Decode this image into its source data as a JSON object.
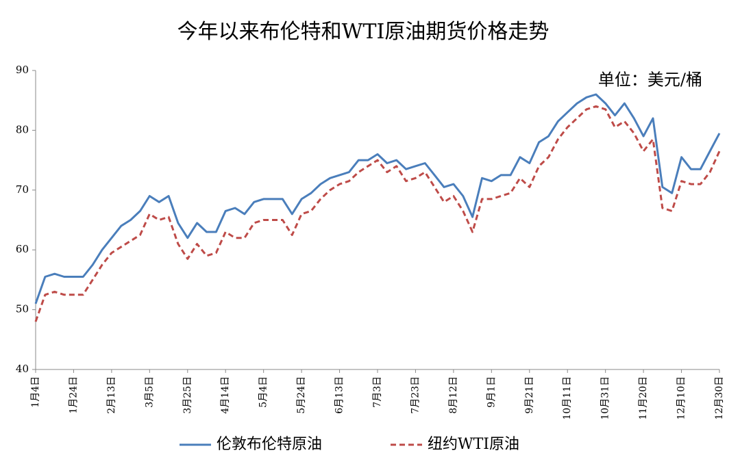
{
  "chart_data": {
    "type": "line",
    "title": "今年以来布伦特和WTI原油期货价格走势",
    "annotation": "单位：美元/桶",
    "categories": [
      "1月4日",
      null,
      null,
      null,
      "1月24日",
      null,
      null,
      null,
      "2月13日",
      null,
      null,
      null,
      "3月5日",
      null,
      null,
      null,
      "3月25日",
      null,
      null,
      null,
      "4月14日",
      null,
      null,
      null,
      "5月4日",
      null,
      null,
      null,
      "5月24日",
      null,
      null,
      null,
      "6月13日",
      null,
      null,
      null,
      "7月3日",
      null,
      null,
      null,
      "7月23日",
      null,
      null,
      null,
      "8月12日",
      null,
      null,
      null,
      "9月1日",
      null,
      null,
      null,
      "9月21日",
      null,
      null,
      null,
      "10月11日",
      null,
      null,
      null,
      "10月31日",
      null,
      null,
      null,
      "11月20日",
      null,
      null,
      null,
      "12月10日",
      null,
      null,
      null,
      "12月30日"
    ],
    "series": [
      {
        "name": "伦敦布伦特原油",
        "color": "#4a7ebb",
        "dashed": false,
        "values": [
          51,
          55.5,
          56,
          55.5,
          55.5,
          55.5,
          57.5,
          60,
          62,
          64,
          65,
          66.5,
          69,
          68,
          69,
          64.5,
          62,
          64.5,
          63,
          63,
          66.5,
          67,
          66,
          68,
          68.5,
          68.5,
          68.5,
          66,
          68.5,
          69.5,
          71,
          72,
          72.5,
          73,
          75,
          75,
          76,
          74.5,
          75,
          73.5,
          74,
          74.5,
          72.5,
          70.5,
          71,
          69,
          65.5,
          72,
          71.5,
          72.5,
          72.5,
          75.5,
          74.5,
          78,
          79,
          81.5,
          83,
          84.5,
          85.5,
          86,
          84.5,
          82.5,
          84.5,
          82,
          79,
          82,
          70.5,
          69.5,
          75.5,
          73.5,
          73.5,
          76.5,
          79.5
        ]
      },
      {
        "name": "纽约WTI原油",
        "color": "#be4b48",
        "dashed": true,
        "values": [
          48,
          52.5,
          53,
          52.5,
          52.5,
          52.5,
          55,
          57.5,
          59.5,
          60.5,
          61.5,
          62.5,
          66,
          65,
          65.5,
          61,
          58.5,
          61,
          59,
          59.5,
          63,
          62,
          62,
          64.5,
          65,
          65,
          65,
          62.5,
          66,
          66.5,
          68.5,
          70,
          71,
          71.5,
          73,
          74,
          75,
          73,
          74,
          71.5,
          72,
          73,
          70.5,
          68,
          69,
          66.5,
          63,
          68.5,
          68.5,
          69,
          69.5,
          72,
          70.5,
          74,
          75.5,
          78.5,
          80.5,
          82,
          83.5,
          84,
          83.5,
          80.5,
          81.5,
          79.5,
          76.5,
          78.5,
          67,
          66.5,
          71.5,
          71,
          71,
          73,
          76.5
        ]
      }
    ],
    "ylim": [
      40,
      90
    ],
    "yticks": [
      40,
      50,
      60,
      70,
      80,
      90
    ],
    "grid": false
  }
}
